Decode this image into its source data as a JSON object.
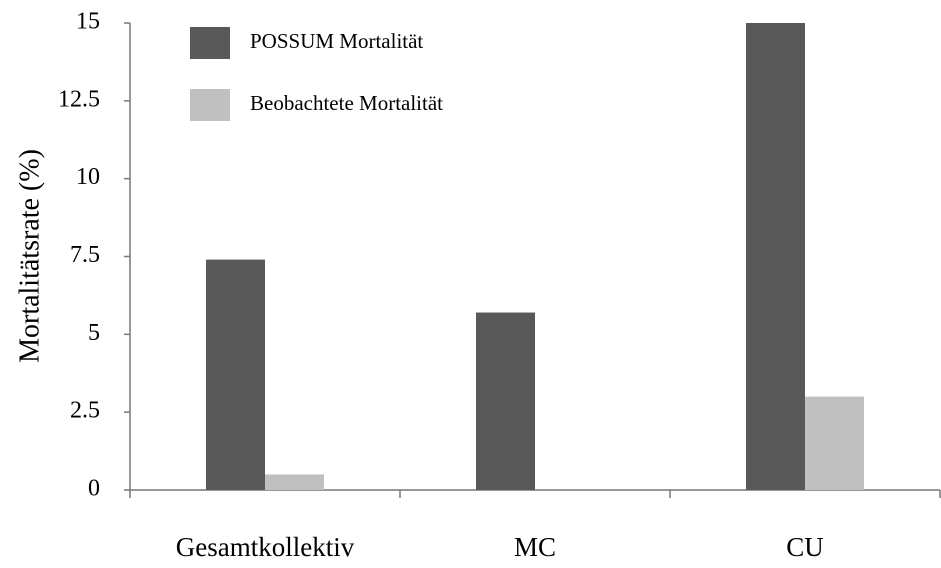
{
  "chart_data": {
    "type": "bar",
    "y_label": "Mortalitätsrate (%)",
    "categories": [
      "Gesamtkollektiv",
      "MC",
      "CU"
    ],
    "series": [
      {
        "name": "POSSUM Mortalität",
        "color": "#595959",
        "values": [
          7.4,
          5.7,
          15
        ]
      },
      {
        "name": "Beobachtete Mortalität",
        "color": "#c0c0c0",
        "values": [
          0.5,
          0,
          3.0
        ]
      }
    ],
    "ylim": [
      0,
      15
    ],
    "yticks": [
      0,
      2.5,
      5,
      7.5,
      10,
      12.5,
      15
    ],
    "grid": false
  }
}
